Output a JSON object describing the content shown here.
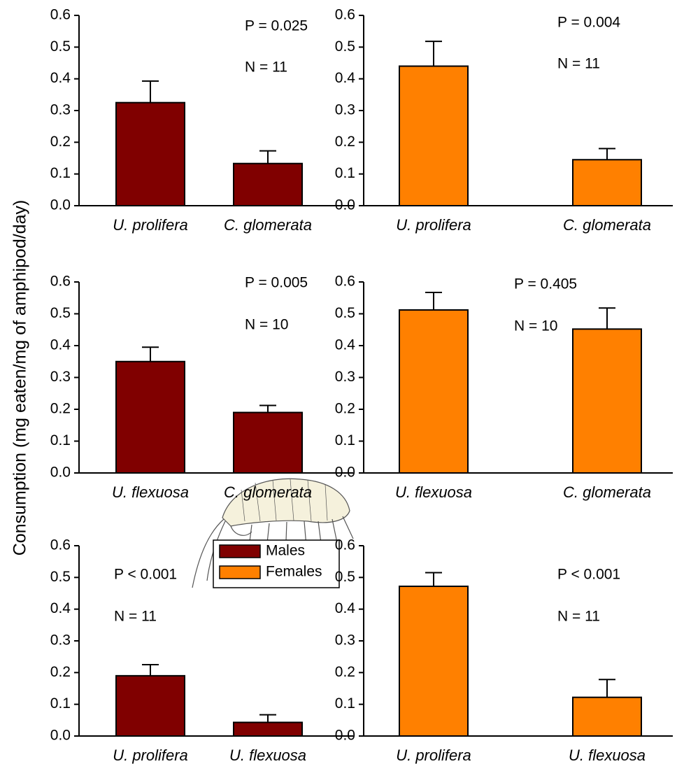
{
  "y_axis_label": "Consumption (mg eaten/mg of amphipod/day)",
  "legend": {
    "entries": [
      {
        "name": "Males",
        "color": "#800000"
      },
      {
        "name": "Females",
        "color": "#ff8000"
      }
    ]
  },
  "chart_data": [
    {
      "type": "bar",
      "categories": [
        "U. prolifera",
        "C. glomerata"
      ],
      "values": [
        0.325,
        0.133
      ],
      "errors": [
        0.068,
        0.04
      ],
      "color": "#800000",
      "annotations": [
        "P = 0.025",
        "N = 11"
      ],
      "ylim": [
        0,
        0.6
      ],
      "yticks": [
        {
          "value": 0,
          "label": "0.0"
        },
        0.1,
        0.2,
        0.3,
        0.4,
        0.5,
        0.6
      ]
    },
    {
      "type": "bar",
      "categories": [
        "U. prolifera",
        "C. glomerata"
      ],
      "values": [
        0.44,
        0.145
      ],
      "errors": [
        0.078,
        0.035
      ],
      "color": "#ff8000",
      "annotations": [
        "P = 0.004",
        "N = 11"
      ],
      "ylim": [
        0,
        0.6
      ],
      "yticks": [
        {
          "value": 0,
          "label": "0.0"
        },
        0.1,
        0.2,
        0.3,
        0.4,
        0.5,
        0.6
      ]
    },
    {
      "type": "bar",
      "categories": [
        "U. flexuosa",
        "C. glomerata"
      ],
      "values": [
        0.35,
        0.19
      ],
      "errors": [
        0.045,
        0.022
      ],
      "color": "#800000",
      "annotations": [
        "P = 0.005",
        "N = 10"
      ],
      "ylim": [
        0,
        0.6
      ],
      "yticks": [
        {
          "value": 0,
          "label": "0.0"
        },
        0.1,
        0.2,
        0.3,
        0.4,
        0.5,
        0.6
      ]
    },
    {
      "type": "bar",
      "categories": [
        "U. flexuosa",
        "C. glomerata"
      ],
      "values": [
        0.512,
        0.452
      ],
      "errors": [
        0.055,
        0.066
      ],
      "color": "#ff8000",
      "annotations": [
        "P = 0.405",
        "N = 10"
      ],
      "ylim": [
        0,
        0.6
      ],
      "yticks": [
        {
          "value": 0,
          "label": "0.0"
        },
        0.1,
        0.2,
        0.3,
        0.4,
        0.5,
        0.6
      ]
    },
    {
      "type": "bar",
      "categories": [
        "U. prolifera",
        "U. flexuosa"
      ],
      "values": [
        0.19,
        0.043
      ],
      "errors": [
        0.035,
        0.024
      ],
      "color": "#800000",
      "annotations": [
        "P < 0.001",
        "N = 11"
      ],
      "ylim": [
        0,
        0.6
      ],
      "yticks": [
        {
          "value": 0,
          "label": "0.0"
        },
        0.1,
        0.2,
        0.3,
        0.4,
        0.5,
        0.6
      ]
    },
    {
      "type": "bar",
      "categories": [
        "U. prolifera",
        "U. flexuosa"
      ],
      "values": [
        0.472,
        0.122
      ],
      "errors": [
        0.043,
        0.056
      ],
      "color": "#ff8000",
      "annotations": [
        "P < 0.001",
        "N = 11"
      ],
      "ylim": [
        0,
        0.6
      ],
      "yticks": [
        {
          "value": 0,
          "label": "0.0"
        },
        0.1,
        0.2,
        0.3,
        0.4,
        0.5,
        0.6
      ]
    }
  ]
}
